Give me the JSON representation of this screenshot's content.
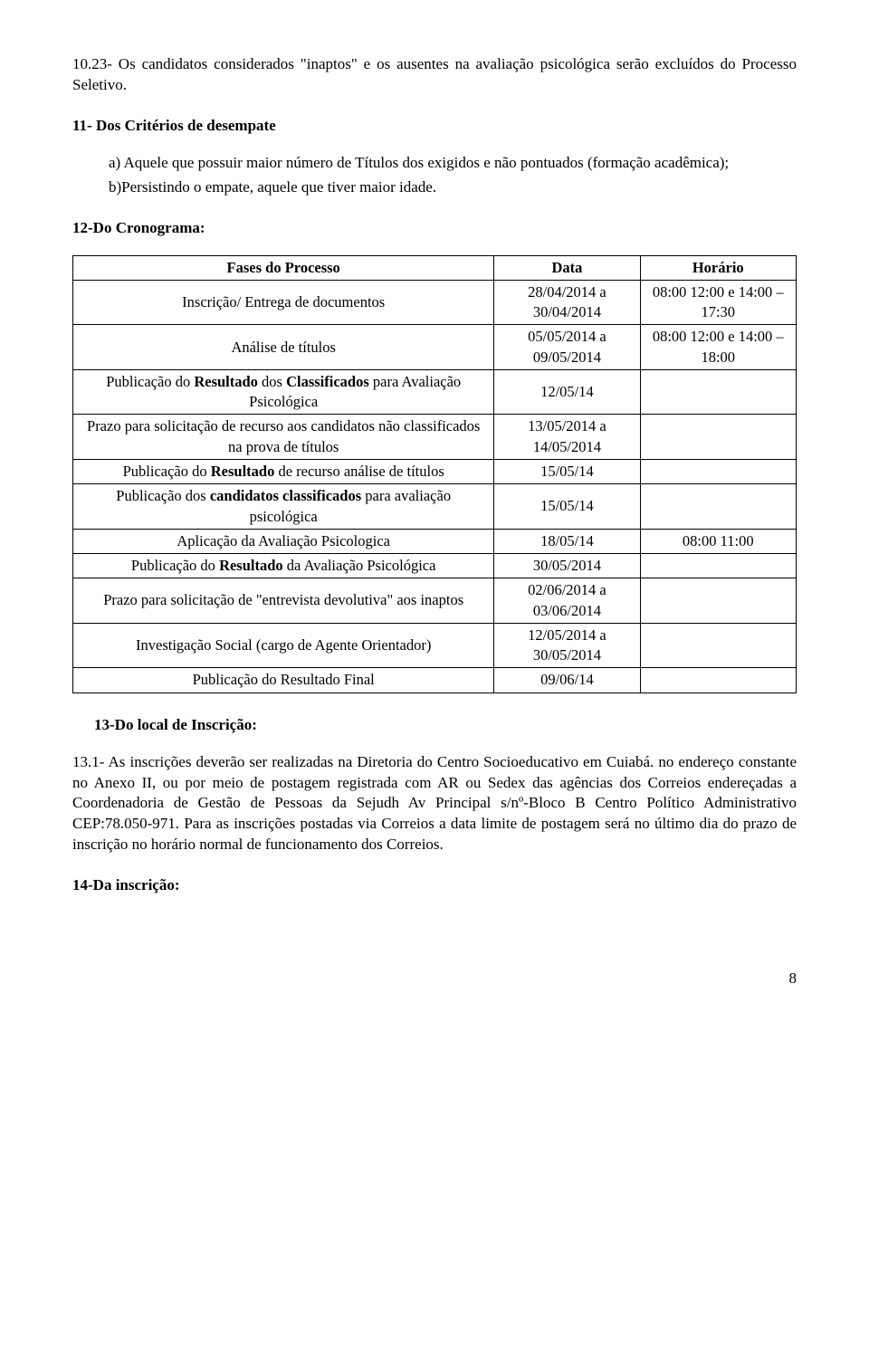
{
  "p1": {
    "text": "10.23- Os candidatos considerados \"inaptos\" e os ausentes na avaliação psicológica serão excluídos do Processo Seletivo."
  },
  "h11": {
    "text": "11- Dos Critérios de desempate"
  },
  "p11a": {
    "text": "a) Aquele que possuir maior número de Títulos dos exigidos e não pontuados (formação acadêmica);"
  },
  "p11b": {
    "text": "b)Persistindo o empate, aquele que tiver maior idade."
  },
  "h12": {
    "text": "12-Do Cronograma:"
  },
  "table": {
    "headers": {
      "c1": "Fases do Processo",
      "c2": "Data",
      "c3": "Horário"
    },
    "rows": [
      {
        "phase_html": "Inscrição/ Entrega de documentos",
        "date": "28/04/2014 a 30/04/2014",
        "time": "08:00 12:00 e 14:00 – 17:30"
      },
      {
        "phase_html": "Análise de títulos",
        "date": "05/05/2014 a 09/05/2014",
        "time": "08:00 12:00 e 14:00 – 18:00"
      },
      {
        "phase_html": "Publicação do <b>Resultado</b> dos <b>Classificados</b> para Avaliação Psicológica",
        "date": "12/05/14",
        "time": ""
      },
      {
        "phase_html": "Prazo para solicitação de recurso aos candidatos não classificados na prova de títulos",
        "date": "13/05/2014 a 14/05/2014",
        "time": ""
      },
      {
        "phase_html": "Publicação do <b>Resultado</b> de recurso análise de títulos",
        "date": "15/05/14",
        "time": ""
      },
      {
        "phase_html": "Publicação dos <b>candidatos classificados</b>  para avaliação psicológica",
        "date": "15/05/14",
        "time": ""
      },
      {
        "phase_html": "Aplicação da Avaliação Psicologica",
        "date": "18/05/14",
        "time": "08:00 11:00"
      },
      {
        "phase_html": "Publicação do <b>Resultado</b> da Avaliação Psicológica",
        "date": "30/05/2014",
        "time": ""
      },
      {
        "phase_html": "Prazo para solicitação de \"entrevista devolutiva\" aos inaptos",
        "date": "02/06/2014 a 03/06/2014",
        "time": ""
      },
      {
        "phase_html": "Investigação Social (cargo de Agente Orientador)",
        "date": "12/05/2014 a 30/05/2014",
        "time": ""
      },
      {
        "phase_html": "Publicação do Resultado Final",
        "date": "09/06/14",
        "time": ""
      }
    ]
  },
  "h13": {
    "text": "13-Do local de Inscrição:"
  },
  "p13": {
    "text": "13.1- As inscrições  deverão ser realizadas na Diretoria do Centro Socioeducativo em Cuiabá. no endereço constante no Anexo II, ou por meio de postagem registrada com AR ou Sedex das agências dos Correios endereçadas a  Coordenadoria de Gestão de Pessoas da Sejudh Av Principal s/nº-Bloco B Centro Político Administrativo CEP:78.050-971. Para as inscrições postadas via Correios a data limite de  postagem será  no último dia do prazo de inscrição  no horário normal de funcionamento dos Correios."
  },
  "h14": {
    "text": "14-Da inscrição:"
  },
  "pageNumber": "8"
}
